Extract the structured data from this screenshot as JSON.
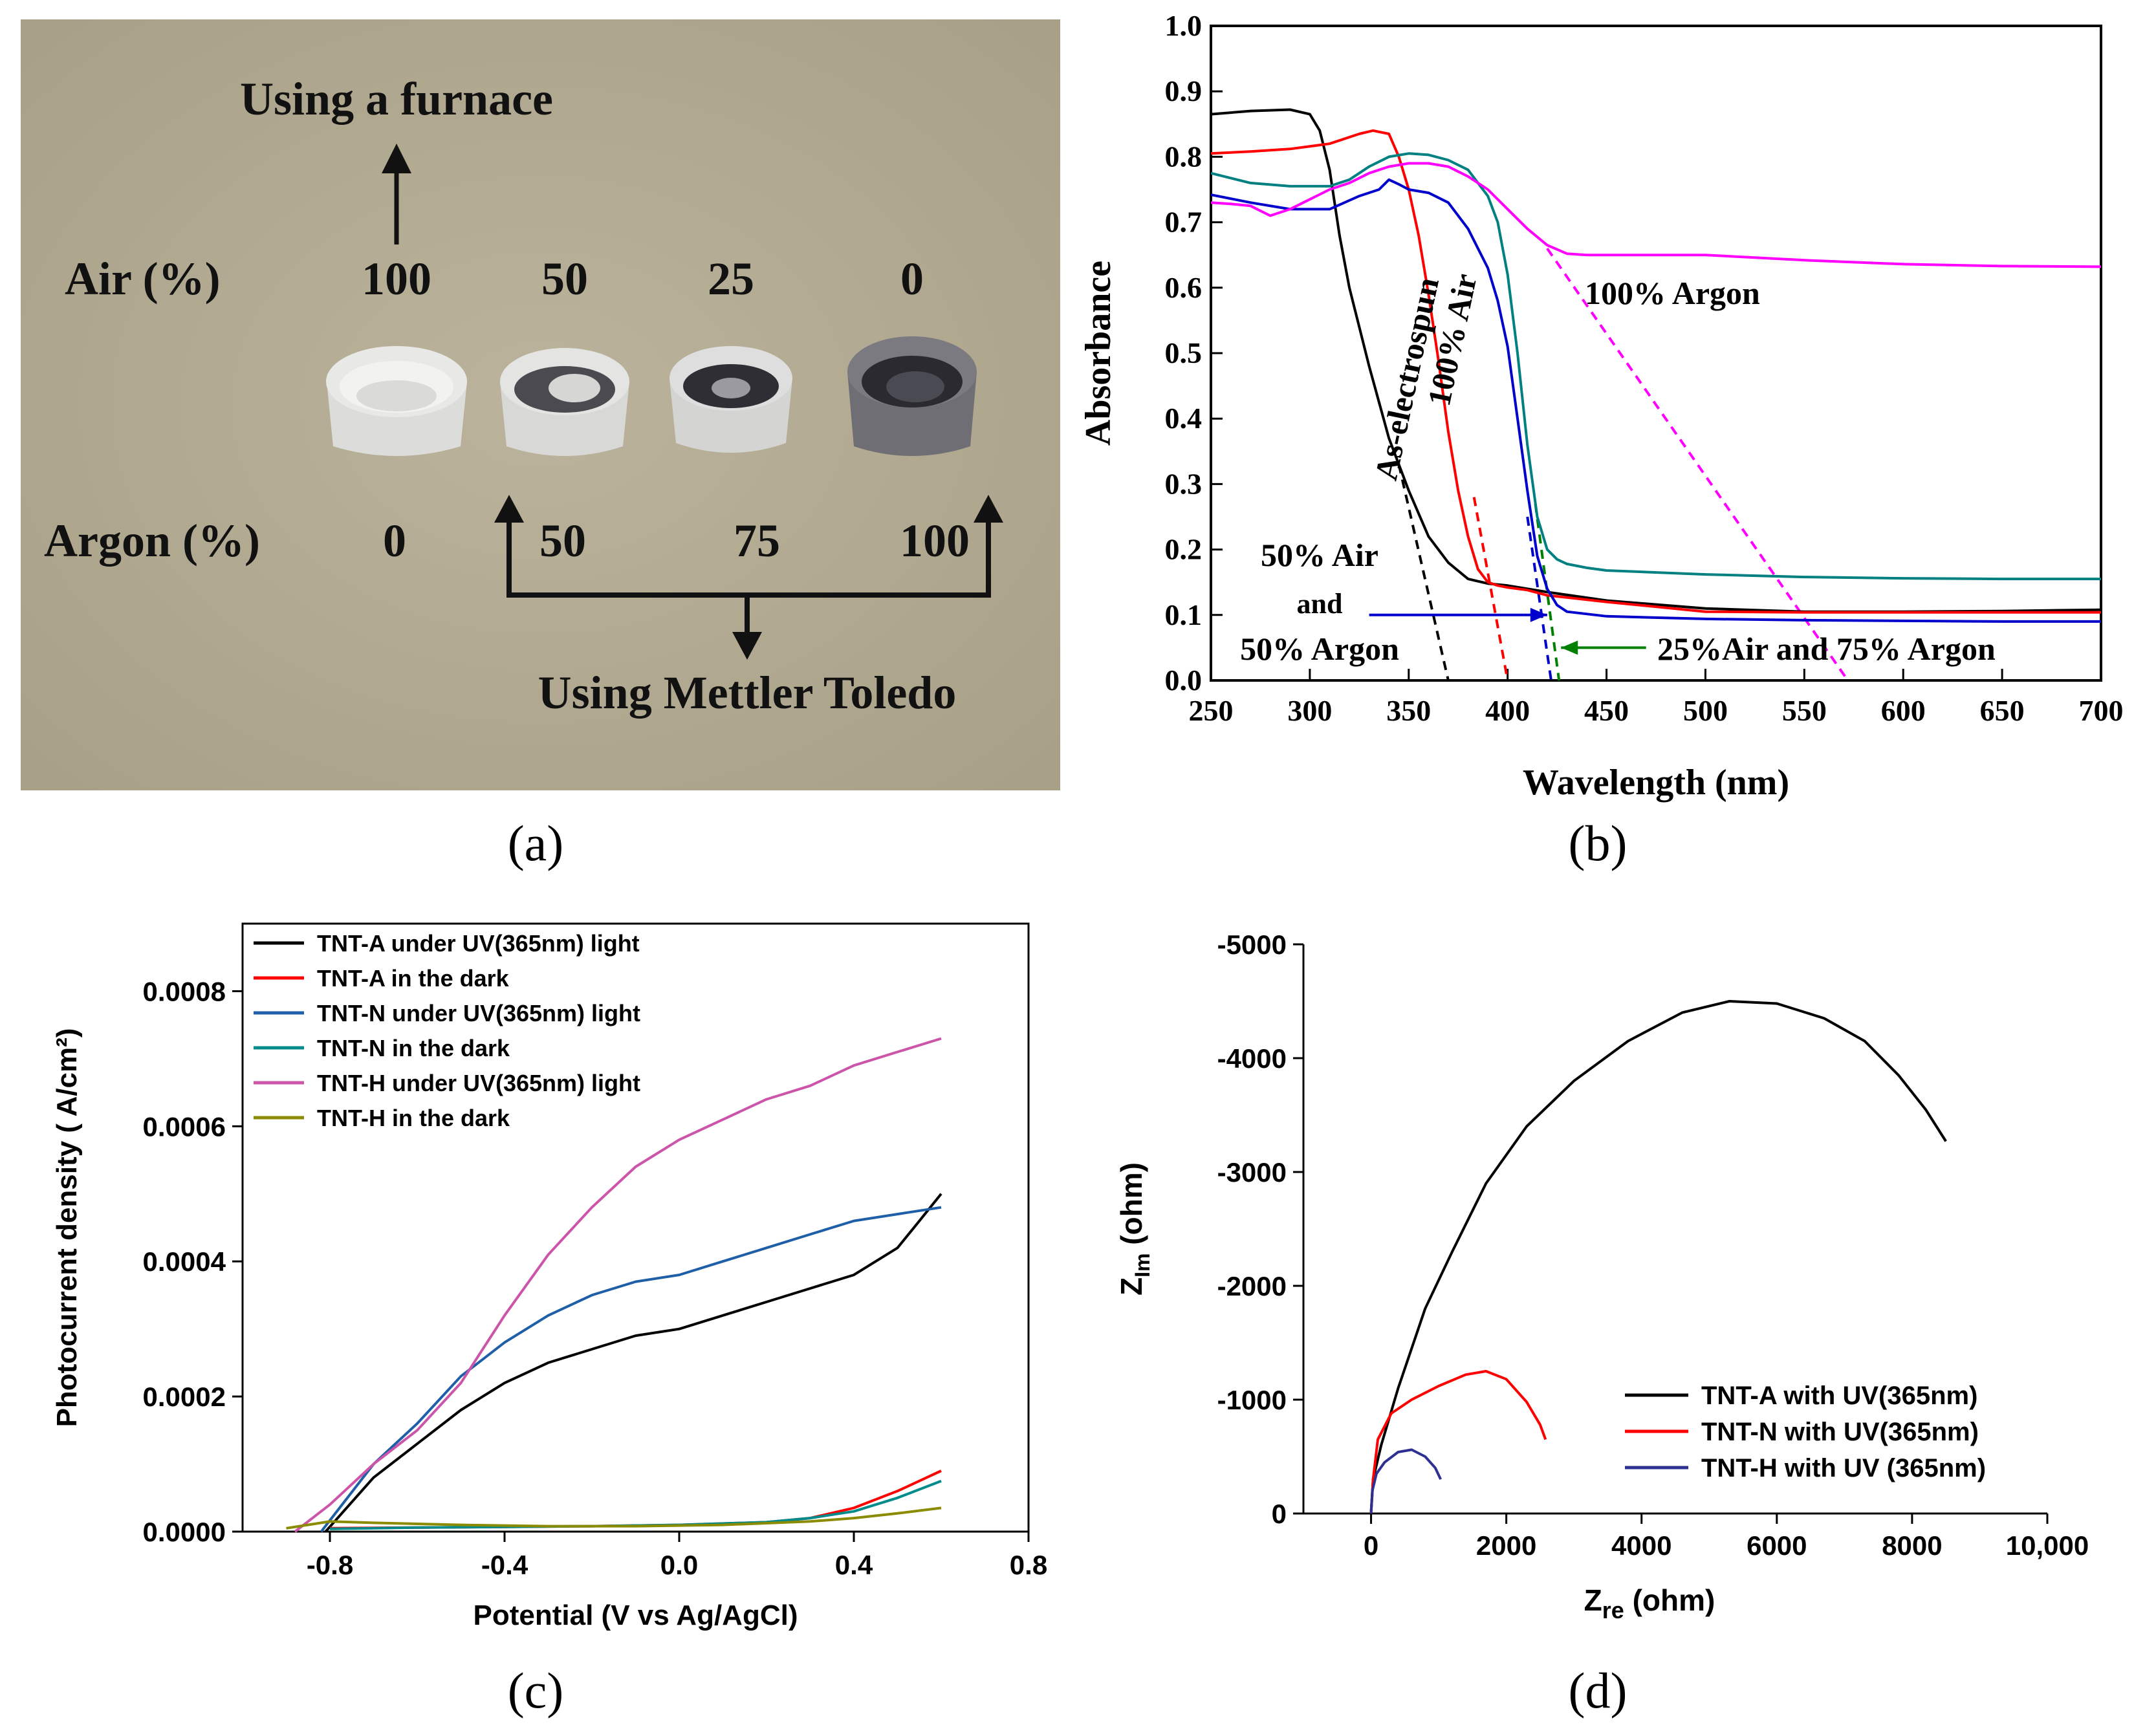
{
  "panel_labels": {
    "a": "(a)",
    "b": "(b)",
    "c": "(c)",
    "d": "(d)"
  },
  "photo": {
    "title_top": "Using a furnace",
    "air_label": "Air (%)",
    "air_values": [
      "100",
      "50",
      "25",
      "0"
    ],
    "argon_label": "Argon (%)",
    "argon_values": [
      "0",
      "50",
      "75",
      "100"
    ],
    "bottom_label": "Using Mettler Toledo",
    "colors": {
      "background": "#b3ab93",
      "crucible": "#e4e4e2",
      "dark_sample": "#3a3a3e"
    }
  },
  "chart_data": [
    {
      "id": "b",
      "type": "line",
      "xlabel": "Wavelength (nm)",
      "ylabel": "Absorbance",
      "xlim": [
        250,
        700
      ],
      "ylim": [
        0.0,
        1.0
      ],
      "xticks": [
        "250",
        "300",
        "350",
        "400",
        "450",
        "500",
        "550",
        "600",
        "650",
        "700"
      ],
      "yticks": [
        "0.0",
        "0.1",
        "0.2",
        "0.3",
        "0.4",
        "0.5",
        "0.6",
        "0.7",
        "0.8",
        "0.9",
        "1.0"
      ],
      "series": [
        {
          "name": "As-electrospun",
          "color": "#000000",
          "x": [
            250,
            270,
            290,
            300,
            305,
            310,
            315,
            320,
            330,
            340,
            350,
            360,
            370,
            380,
            390,
            400,
            420,
            450,
            500,
            550,
            600,
            650,
            700
          ],
          "y": [
            0.865,
            0.87,
            0.872,
            0.865,
            0.84,
            0.78,
            0.68,
            0.6,
            0.48,
            0.37,
            0.29,
            0.22,
            0.18,
            0.155,
            0.148,
            0.145,
            0.135,
            0.122,
            0.11,
            0.105,
            0.105,
            0.106,
            0.108
          ]
        },
        {
          "name": "100% Air",
          "color": "#ff0000",
          "x": [
            250,
            270,
            290,
            310,
            325,
            332,
            340,
            345,
            350,
            355,
            360,
            365,
            370,
            375,
            380,
            385,
            390,
            395,
            400,
            410,
            420,
            450,
            500,
            550,
            600,
            650,
            700
          ],
          "y": [
            0.805,
            0.808,
            0.812,
            0.82,
            0.835,
            0.84,
            0.835,
            0.8,
            0.75,
            0.68,
            0.59,
            0.49,
            0.38,
            0.29,
            0.22,
            0.17,
            0.15,
            0.145,
            0.142,
            0.138,
            0.13,
            0.12,
            0.105,
            0.104,
            0.104,
            0.104,
            0.104
          ]
        },
        {
          "name": "50% Air and 50% Argon",
          "color": "#0000cc",
          "x": [
            250,
            270,
            290,
            310,
            325,
            335,
            340,
            345,
            350,
            360,
            370,
            380,
            390,
            395,
            400,
            405,
            410,
            415,
            420,
            425,
            430,
            450,
            500,
            550,
            600,
            650,
            700
          ],
          "y": [
            0.742,
            0.73,
            0.72,
            0.72,
            0.74,
            0.75,
            0.765,
            0.758,
            0.75,
            0.745,
            0.73,
            0.69,
            0.63,
            0.58,
            0.51,
            0.4,
            0.29,
            0.19,
            0.14,
            0.115,
            0.105,
            0.098,
            0.094,
            0.092,
            0.091,
            0.09,
            0.09
          ]
        },
        {
          "name": "25%Air and 75% Argon",
          "color": "#008080",
          "x": [
            250,
            270,
            290,
            310,
            320,
            330,
            340,
            350,
            360,
            370,
            380,
            390,
            395,
            400,
            405,
            410,
            415,
            420,
            425,
            430,
            440,
            450,
            500,
            550,
            600,
            650,
            700
          ],
          "y": [
            0.775,
            0.76,
            0.755,
            0.755,
            0.765,
            0.785,
            0.8,
            0.805,
            0.803,
            0.795,
            0.78,
            0.74,
            0.7,
            0.62,
            0.5,
            0.36,
            0.25,
            0.2,
            0.185,
            0.178,
            0.172,
            0.168,
            0.162,
            0.158,
            0.156,
            0.155,
            0.155
          ]
        },
        {
          "name": "100% Argon",
          "color": "#ff00ff",
          "x": [
            250,
            260,
            270,
            280,
            290,
            300,
            310,
            320,
            330,
            340,
            350,
            360,
            370,
            380,
            390,
            400,
            410,
            420,
            430,
            440,
            450,
            500,
            550,
            600,
            650,
            700
          ],
          "y": [
            0.73,
            0.728,
            0.725,
            0.71,
            0.72,
            0.735,
            0.75,
            0.76,
            0.775,
            0.785,
            0.79,
            0.79,
            0.785,
            0.77,
            0.75,
            0.72,
            0.69,
            0.665,
            0.652,
            0.65,
            0.65,
            0.65,
            0.642,
            0.636,
            0.633,
            0.632
          ]
        }
      ],
      "tangents": [
        {
          "color": "#000000",
          "x": [
            345,
            370
          ],
          "y": [
            0.33,
            0.0
          ]
        },
        {
          "color": "#ff0000",
          "x": [
            383,
            400
          ],
          "y": [
            0.28,
            0.0
          ]
        },
        {
          "color": "#0000cc",
          "x": [
            410,
            422
          ],
          "y": [
            0.25,
            0.0
          ]
        },
        {
          "color": "#008000",
          "x": [
            414,
            426
          ],
          "y": [
            0.27,
            0.0
          ]
        },
        {
          "color": "#ff00ff",
          "x": [
            420,
            572
          ],
          "y": [
            0.66,
            0.0
          ]
        }
      ],
      "annotations": {
        "as_electrospun": "As-electrospun",
        "air_100": "100% Air",
        "argon_100": "100% Argon",
        "mix_50_line1": "50% Air",
        "mix_50_line2": "and",
        "mix_50_line3": "50% Argon",
        "mix_25": "25%Air and 75% Argon"
      },
      "arrows": [
        {
          "color": "#0000cc",
          "from": [
            330,
            0.1
          ],
          "to": [
            420,
            0.1
          ]
        },
        {
          "color": "#008000",
          "from": [
            470,
            0.05
          ],
          "to": [
            427,
            0.05
          ]
        }
      ]
    },
    {
      "id": "c",
      "type": "line",
      "xlabel": "Potential (V vs Ag/AgCl)",
      "ylabel": "Photocurrent density ( A/cm²)",
      "xlim": [
        -1.0,
        0.8
      ],
      "ylim": [
        0.0,
        0.0009
      ],
      "xticks": [
        "-0.8",
        "-0.4",
        "0.0",
        "0.4",
        "0.8"
      ],
      "yticks": [
        "0.0000",
        "0.0002",
        "0.0004",
        "0.0006",
        "0.0008"
      ],
      "legend_position": "top-left",
      "series": [
        {
          "name": "TNT-A under UV(365nm) light",
          "color": "#000000",
          "x": [
            -0.81,
            -0.7,
            -0.6,
            -0.5,
            -0.4,
            -0.3,
            -0.2,
            -0.1,
            0.0,
            0.1,
            0.2,
            0.3,
            0.4,
            0.5,
            0.55,
            0.6
          ],
          "y": [
            0.0,
            8e-05,
            0.00013,
            0.00018,
            0.00022,
            0.00025,
            0.00027,
            0.00029,
            0.0003,
            0.00032,
            0.00034,
            0.00036,
            0.00038,
            0.00042,
            0.00046,
            0.0005
          ]
        },
        {
          "name": "TNT-A in the dark",
          "color": "#ff0000",
          "x": [
            -0.8,
            -0.6,
            -0.4,
            -0.2,
            0.0,
            0.2,
            0.3,
            0.4,
            0.5,
            0.6
          ],
          "y": [
            5e-06,
            6e-06,
            7e-06,
            8e-06,
            1e-05,
            1.4e-05,
            2e-05,
            3.5e-05,
            6e-05,
            9e-05
          ]
        },
        {
          "name": "TNT-N under UV(365nm) light",
          "color": "#1f5fa8",
          "x": [
            -0.82,
            -0.7,
            -0.6,
            -0.5,
            -0.4,
            -0.3,
            -0.2,
            -0.1,
            0.0,
            0.1,
            0.2,
            0.3,
            0.4,
            0.5,
            0.6
          ],
          "y": [
            0.0,
            0.0001,
            0.00016,
            0.00023,
            0.00028,
            0.00032,
            0.00035,
            0.00037,
            0.00038,
            0.0004,
            0.00042,
            0.00044,
            0.00046,
            0.00047,
            0.00048
          ]
        },
        {
          "name": "TNT-N in the dark",
          "color": "#008b8b",
          "x": [
            -0.8,
            -0.6,
            -0.4,
            -0.2,
            0.0,
            0.2,
            0.3,
            0.4,
            0.5,
            0.6
          ],
          "y": [
            4e-06,
            6e-06,
            7e-06,
            8e-06,
            1e-05,
            1.4e-05,
            2e-05,
            3e-05,
            5e-05,
            7.5e-05
          ]
        },
        {
          "name": "TNT-H under UV(365nm) light",
          "color": "#cc55aa",
          "x": [
            -0.88,
            -0.8,
            -0.7,
            -0.6,
            -0.5,
            -0.4,
            -0.3,
            -0.2,
            -0.1,
            0.0,
            0.1,
            0.2,
            0.3,
            0.4,
            0.5,
            0.6
          ],
          "y": [
            0.0,
            4e-05,
            0.0001,
            0.00015,
            0.00022,
            0.00032,
            0.00041,
            0.00048,
            0.00054,
            0.00058,
            0.00061,
            0.00064,
            0.00066,
            0.00069,
            0.00071,
            0.00073
          ]
        },
        {
          "name": "TNT-H in the dark",
          "color": "#8b8b00",
          "x": [
            -0.9,
            -0.8,
            -0.7,
            -0.5,
            -0.3,
            -0.1,
            0.1,
            0.3,
            0.4,
            0.5,
            0.6
          ],
          "y": [
            5e-06,
            1.5e-05,
            1.3e-05,
            1e-05,
            8e-06,
            8e-06,
            1e-05,
            1.5e-05,
            2e-05,
            2.7e-05,
            3.5e-05
          ]
        }
      ]
    },
    {
      "id": "d",
      "type": "line",
      "xlabel_main": "Z",
      "xlabel_sub": "re",
      "xlabel_unit": " (ohm)",
      "ylabel_main": "Z",
      "ylabel_sub": "Im",
      "ylabel_unit": " (ohm)",
      "xlim": [
        -1000,
        10000
      ],
      "ylim": [
        0,
        -5000
      ],
      "xticks": [
        "0",
        "2000",
        "4000",
        "6000",
        "8000",
        "10,000"
      ],
      "yticks": [
        "0",
        "-1000",
        "-2000",
        "-3000",
        "-4000",
        "-5000"
      ],
      "legend_position": "bottom-right",
      "series": [
        {
          "name": "TNT-A with UV(365nm)",
          "color": "#000000",
          "x": [
            0,
            30,
            150,
            400,
            800,
            1200,
            1700,
            2300,
            3000,
            3800,
            4600,
            5300,
            6000,
            6700,
            7300,
            7800,
            8200,
            8500
          ],
          "y": [
            0,
            -300,
            -600,
            -1100,
            -1800,
            -2300,
            -2900,
            -3400,
            -3800,
            -4150,
            -4400,
            -4500,
            -4480,
            -4350,
            -4150,
            -3850,
            -3550,
            -3270
          ]
        },
        {
          "name": "TNT-N with UV(365nm)",
          "color": "#ff0000",
          "x": [
            0,
            30,
            100,
            300,
            600,
            1000,
            1400,
            1700,
            2000,
            2300,
            2500,
            2580
          ],
          "y": [
            0,
            -300,
            -650,
            -880,
            -1000,
            -1120,
            -1220,
            -1250,
            -1180,
            -980,
            -780,
            -650
          ]
        },
        {
          "name": "TNT-H with UV (365nm)",
          "color": "#2e3192",
          "x": [
            0,
            20,
            80,
            200,
            400,
            600,
            800,
            950,
            1030
          ],
          "y": [
            0,
            -200,
            -350,
            -450,
            -540,
            -560,
            -500,
            -400,
            -300
          ]
        }
      ]
    }
  ]
}
